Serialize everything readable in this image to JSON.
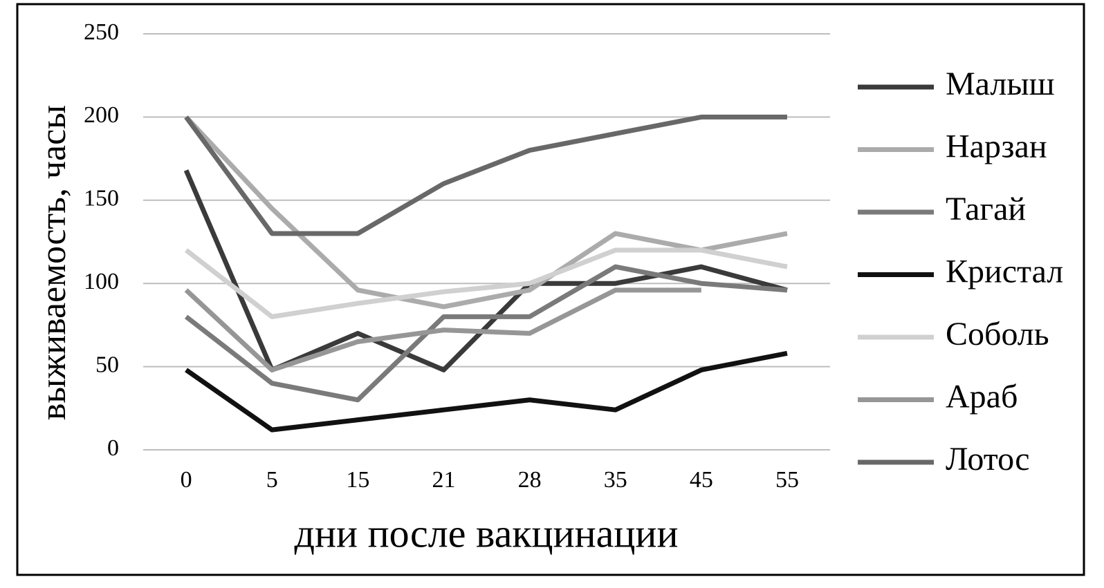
{
  "chart_data": {
    "type": "line",
    "y_label": "выживаемость, часы",
    "x_label": "дни после вакцинации",
    "categories": [
      "0",
      "5",
      "15",
      "21",
      "28",
      "35",
      "45",
      "55"
    ],
    "series": [
      {
        "name": "Малыш",
        "color": "#3a3a3a",
        "values": [
          168,
          48,
          70,
          48,
          100,
          100,
          110,
          96
        ]
      },
      {
        "name": "Нарзан",
        "color": "#ababab",
        "values": [
          200,
          145,
          96,
          86,
          96,
          130,
          120,
          130
        ]
      },
      {
        "name": "Тагай",
        "color": "#7a7a7a",
        "values": [
          80,
          40,
          30,
          80,
          80,
          110,
          100,
          96
        ]
      },
      {
        "name": "Кристал",
        "color": "#111111",
        "values": [
          48,
          12,
          18,
          24,
          30,
          24,
          48,
          58
        ]
      },
      {
        "name": "Соболь",
        "color": "#d0d0d0",
        "values": [
          120,
          80,
          88,
          95,
          100,
          120,
          120,
          110
        ]
      },
      {
        "name": "Араб",
        "color": "#969696",
        "values": [
          96,
          48,
          65,
          72,
          70,
          96,
          96,
          null
        ]
      },
      {
        "name": "Лотос",
        "color": "#686868",
        "values": [
          200,
          130,
          130,
          160,
          180,
          190,
          200,
          200
        ]
      }
    ],
    "ylim": [
      0,
      250
    ],
    "yticks": [
      0,
      50,
      100,
      150,
      200,
      250
    ],
    "grid": true,
    "legend": "right"
  }
}
